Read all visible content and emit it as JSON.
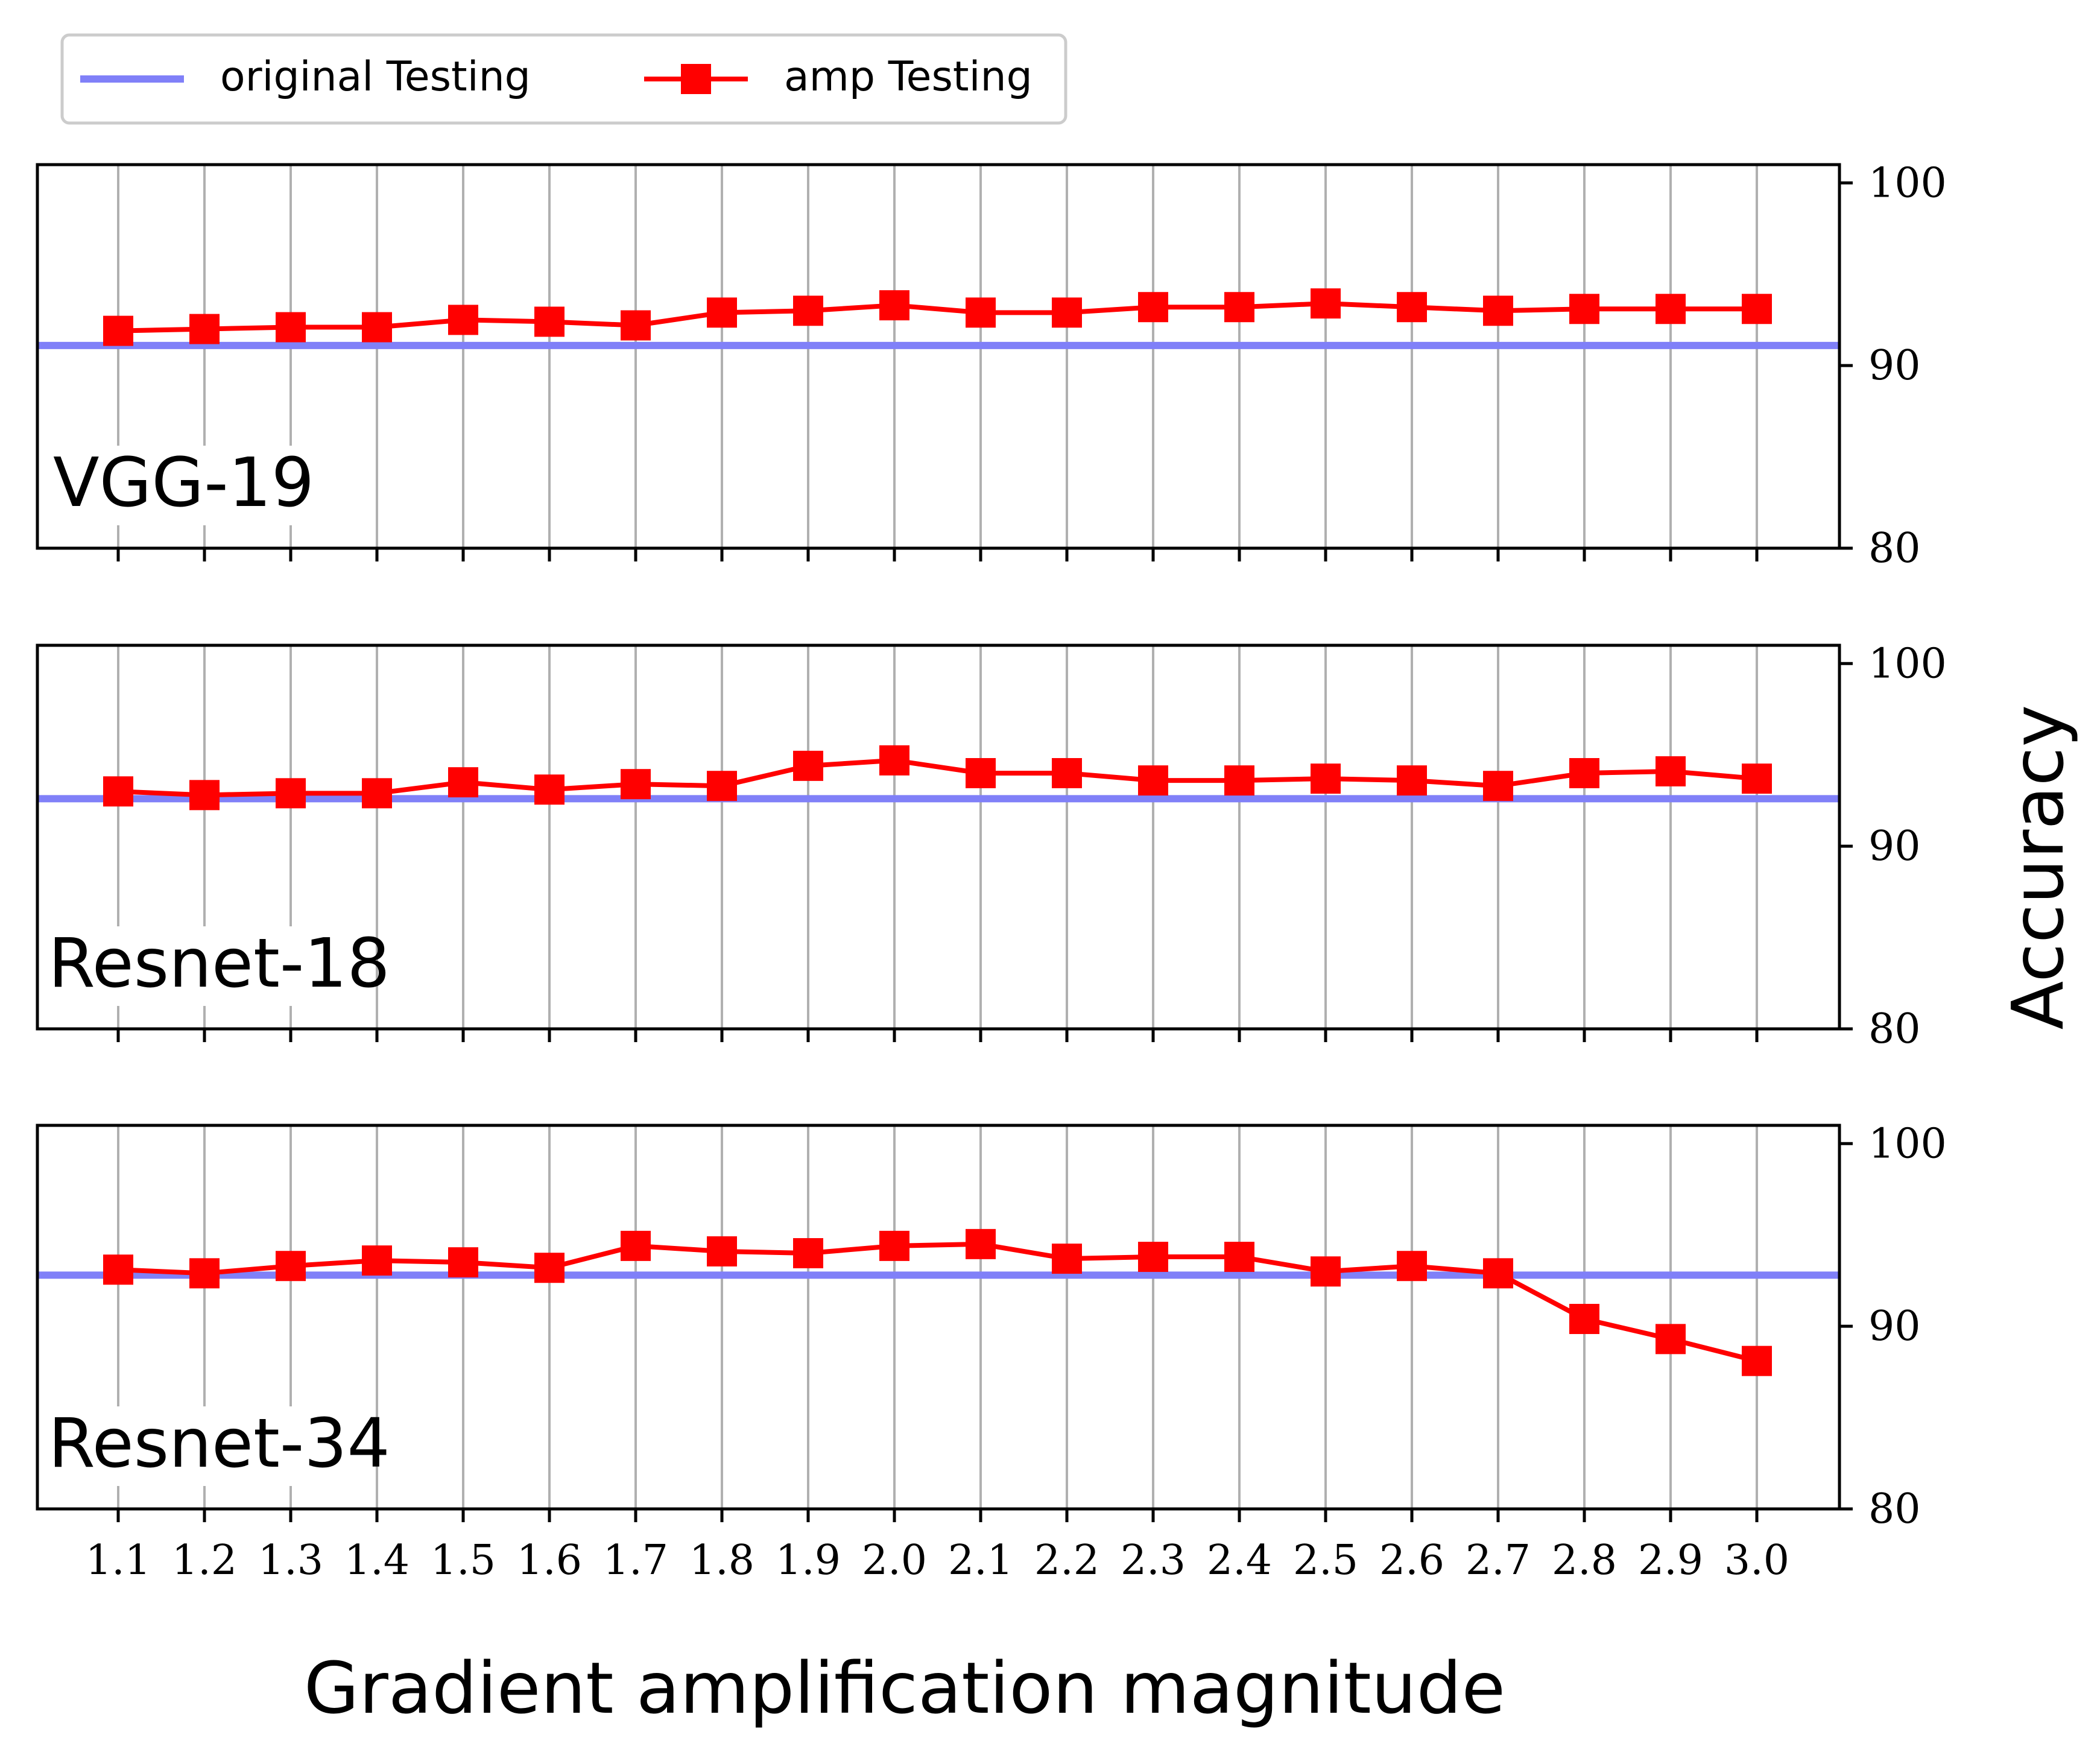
{
  "chart_data": {
    "type": "line",
    "xlabel": "Gradient amplification magnitude",
    "ylabel": "Accuracy",
    "x_ticks": [
      "1.1",
      "1.2",
      "1.3",
      "1.4",
      "1.5",
      "1.6",
      "1.7",
      "1.8",
      "1.9",
      "2.0",
      "2.1",
      "2.2",
      "2.3",
      "2.4",
      "2.5",
      "2.6",
      "2.7",
      "2.8",
      "2.9",
      "3.0"
    ],
    "y_ticks": [
      "100",
      "90",
      "80"
    ],
    "ylim": [
      80,
      101
    ],
    "grid": "vertical",
    "legend": {
      "placement": "top-left",
      "entries": [
        {
          "label": "original Testing",
          "color": "#8080f8",
          "marker": "none"
        },
        {
          "label": "amp Testing",
          "color": "#ff0000",
          "marker": "square"
        }
      ]
    },
    "panels": [
      {
        "title": "VGG-19",
        "original": 91.1,
        "amp": [
          91.9,
          92.0,
          92.1,
          92.1,
          92.5,
          92.4,
          92.2,
          92.9,
          93.0,
          93.3,
          92.9,
          92.9,
          93.2,
          93.2,
          93.4,
          93.2,
          93.0,
          93.1,
          93.1,
          93.1
        ]
      },
      {
        "title": "Resnet-18",
        "original": 92.6,
        "amp": [
          93.0,
          92.8,
          92.9,
          92.9,
          93.5,
          93.1,
          93.4,
          93.3,
          94.4,
          94.7,
          94.0,
          94.0,
          93.6,
          93.6,
          93.7,
          93.6,
          93.3,
          94.0,
          94.1,
          93.7
        ]
      },
      {
        "title": "Resnet-34",
        "original": 92.8,
        "amp": [
          93.1,
          92.9,
          93.3,
          93.6,
          93.5,
          93.2,
          94.4,
          94.1,
          94.0,
          94.4,
          94.5,
          93.7,
          93.8,
          93.8,
          93.0,
          93.3,
          92.9,
          90.4,
          89.3,
          88.1
        ]
      }
    ]
  }
}
